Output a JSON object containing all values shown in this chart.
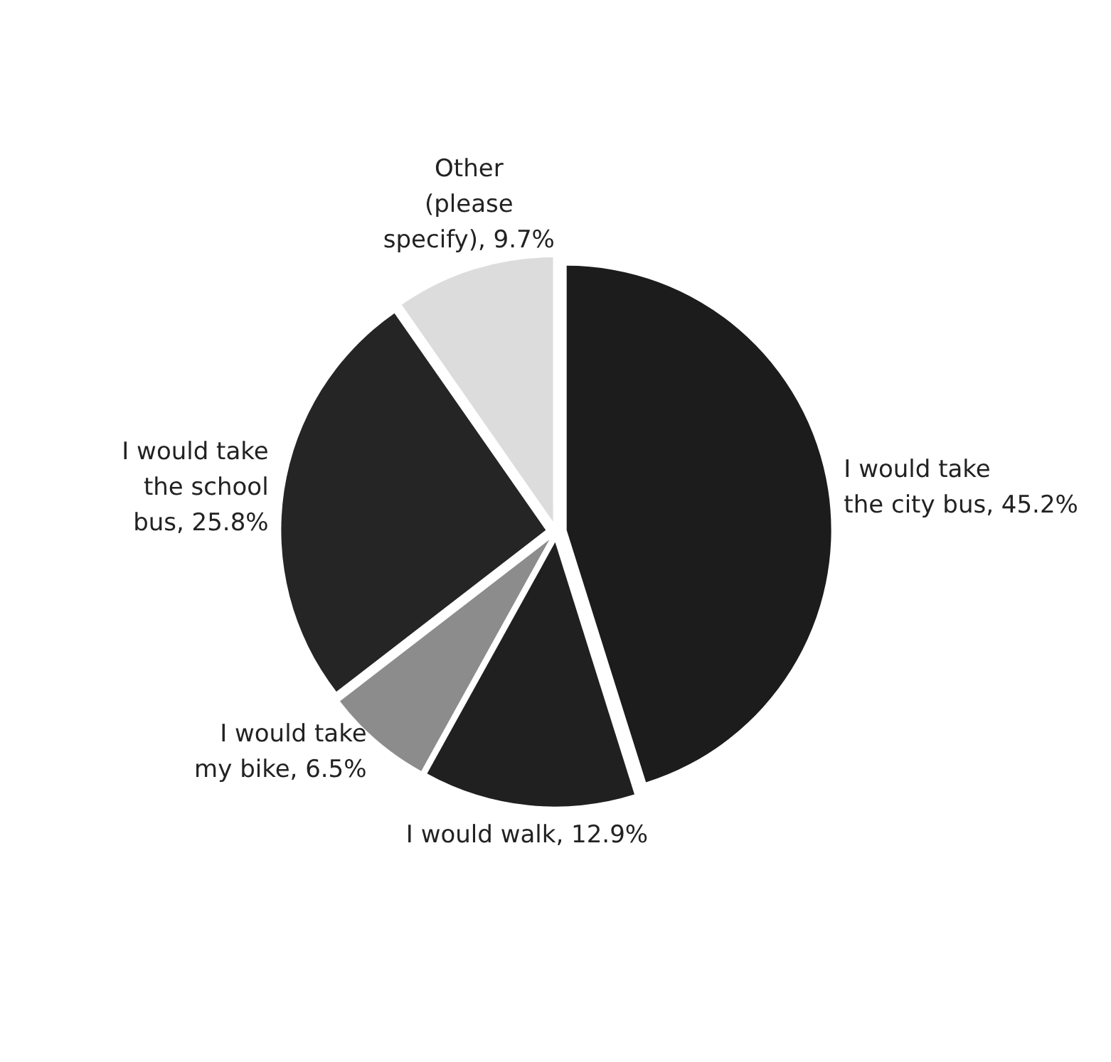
{
  "chart_data": {
    "type": "pie",
    "categories": [
      "I would take the city bus",
      "I would walk",
      "I would take my bike",
      "I would take the school bus",
      "Other (please specify)"
    ],
    "values": [
      45.2,
      12.9,
      6.5,
      25.8,
      9.7
    ],
    "value_labels": [
      "45.2%",
      "12.9%",
      "6.5%",
      "25.8%",
      "9.7%"
    ],
    "colors": [
      "#1c1c1c",
      "#202020",
      "#8c8c8c",
      "#252525",
      "#dcdcdc"
    ]
  }
}
